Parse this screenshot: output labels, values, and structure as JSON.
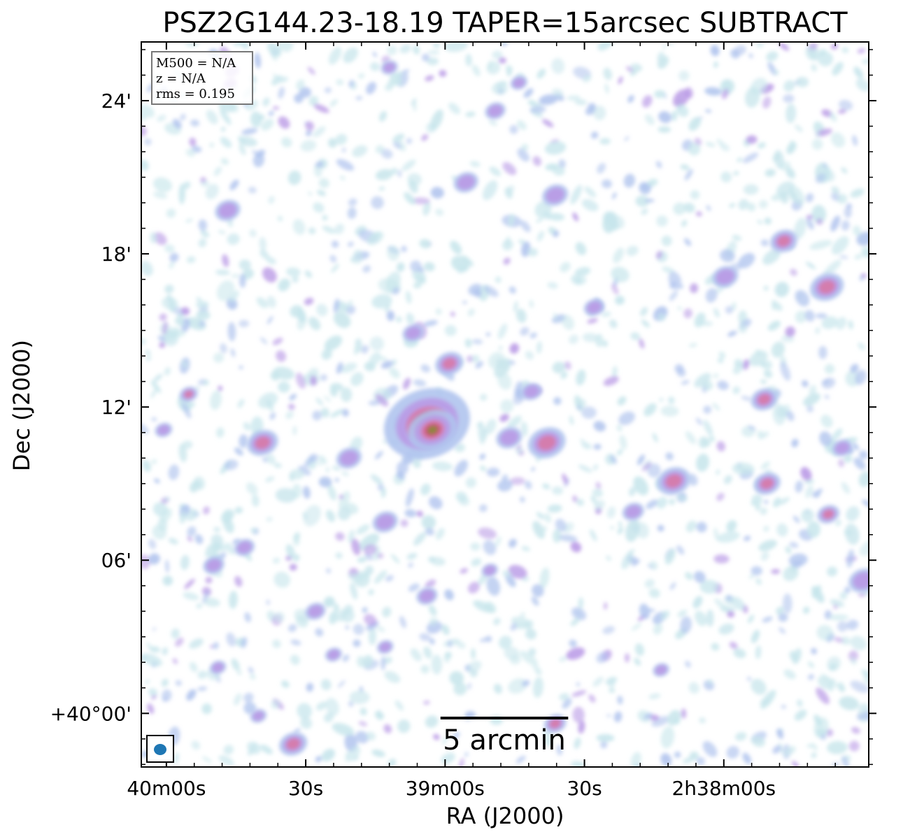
{
  "chart_data": {
    "type": "heatmap",
    "title": "PSZ2G144.23-18.19 TAPER=15arcsec SUBTRACT",
    "xlabel": "RA (J2000)",
    "ylabel": "Dec (J2000)",
    "x_ticks": [
      {
        "label": "40m00s",
        "ra_sec": 160.0
      },
      {
        "label": "30s",
        "ra_sec": 150.0
      },
      {
        "label": "39m00s",
        "ra_sec": 140.0
      },
      {
        "label": "30s",
        "ra_sec": 130.0
      },
      {
        "label": "2h38m00s",
        "ra_sec": 120.0
      }
    ],
    "y_ticks": [
      {
        "label": "24'",
        "dec_arcmin": 24
      },
      {
        "label": "18'",
        "dec_arcmin": 18
      },
      {
        "label": "12'",
        "dec_arcmin": 12
      },
      {
        "label": "06'",
        "dec_arcmin": 6
      },
      {
        "label": "+40°00'",
        "dec_arcmin": 0
      }
    ],
    "x_range_ra_sec": [
      161.8,
      109.6
    ],
    "y_range_dec_arcmin": [
      -2.1,
      26.3
    ],
    "info_box": {
      "position": "top-left",
      "lines": [
        "M500 = N/A",
        "z = N/A",
        "rms = 0.195"
      ]
    },
    "scale_bar": {
      "label": "5 arcmin",
      "length_arcmin": 5
    },
    "beam": {
      "position": "bottom-left",
      "color": "#1f77b4"
    },
    "colormap": [
      "#ffffff",
      "#c8e6ec",
      "#b0c4ee",
      "#b99ae6",
      "#d77aa6",
      "#c8506a",
      "#8a8a3a",
      "#4f7a2e"
    ],
    "sources": [
      {
        "ra_sec": 141.3,
        "dec_arcmin": 11.35,
        "peak": 1.0,
        "size": 1.5
      },
      {
        "ra_sec": 140.9,
        "dec_arcmin": 11.1,
        "peak": 0.9,
        "size": 0.9
      },
      {
        "ra_sec": 139.7,
        "dec_arcmin": 13.7,
        "peak": 0.55,
        "size": 0.6
      },
      {
        "ra_sec": 132.7,
        "dec_arcmin": 10.6,
        "peak": 0.55,
        "size": 0.8
      },
      {
        "ra_sec": 123.6,
        "dec_arcmin": 9.1,
        "peak": 0.6,
        "size": 0.7
      },
      {
        "ra_sec": 112.6,
        "dec_arcmin": 16.7,
        "peak": 0.6,
        "size": 0.7
      },
      {
        "ra_sec": 115.7,
        "dec_arcmin": 18.5,
        "peak": 0.5,
        "size": 0.6
      },
      {
        "ra_sec": 112.5,
        "dec_arcmin": 7.8,
        "peak": 0.45,
        "size": 0.5
      },
      {
        "ra_sec": 116.9,
        "dec_arcmin": 9.0,
        "peak": 0.45,
        "size": 0.6
      },
      {
        "ra_sec": 117.1,
        "dec_arcmin": 12.3,
        "peak": 0.45,
        "size": 0.6
      },
      {
        "ra_sec": 150.9,
        "dec_arcmin": -1.2,
        "peak": 0.55,
        "size": 0.6
      },
      {
        "ra_sec": 153.1,
        "dec_arcmin": 10.6,
        "peak": 0.45,
        "size": 0.7
      },
      {
        "ra_sec": 132.1,
        "dec_arcmin": -0.4,
        "peak": 0.45,
        "size": 0.5
      },
      {
        "ra_sec": 132.1,
        "dec_arcmin": 20.3,
        "peak": 0.4,
        "size": 0.6
      },
      {
        "ra_sec": 119.9,
        "dec_arcmin": 17.1,
        "peak": 0.4,
        "size": 0.6
      },
      {
        "ra_sec": 158.4,
        "dec_arcmin": 12.5,
        "peak": 0.5,
        "size": 0.4
      },
      {
        "ra_sec": 160.2,
        "dec_arcmin": 11.1,
        "peak": 0.4,
        "size": 0.4
      },
      {
        "ra_sec": 126.5,
        "dec_arcmin": 7.9,
        "peak": 0.4,
        "size": 0.5
      },
      {
        "ra_sec": 135.4,
        "dec_arcmin": 10.8,
        "peak": 0.4,
        "size": 0.6
      },
      {
        "ra_sec": 142.3,
        "dec_arcmin": 14.9,
        "peak": 0.35,
        "size": 0.5
      },
      {
        "ra_sec": 144.3,
        "dec_arcmin": 7.5,
        "peak": 0.35,
        "size": 0.6
      },
      {
        "ra_sec": 141.3,
        "dec_arcmin": 4.6,
        "peak": 0.35,
        "size": 0.5
      },
      {
        "ra_sec": 146.9,
        "dec_arcmin": 10.0,
        "peak": 0.35,
        "size": 0.6
      },
      {
        "ra_sec": 154.4,
        "dec_arcmin": 6.5,
        "peak": 0.3,
        "size": 0.5
      },
      {
        "ra_sec": 156.6,
        "dec_arcmin": 5.8,
        "peak": 0.35,
        "size": 0.5
      },
      {
        "ra_sec": 148.0,
        "dec_arcmin": 2.3,
        "peak": 0.35,
        "size": 0.4
      },
      {
        "ra_sec": 155.6,
        "dec_arcmin": 19.7,
        "peak": 0.35,
        "size": 0.6
      },
      {
        "ra_sec": 138.5,
        "dec_arcmin": 20.8,
        "peak": 0.3,
        "size": 0.6
      },
      {
        "ra_sec": 144.0,
        "dec_arcmin": 25.3,
        "peak": 0.35,
        "size": 0.4
      },
      {
        "ra_sec": 134.7,
        "dec_arcmin": 24.7,
        "peak": 0.35,
        "size": 0.4
      },
      {
        "ra_sec": 136.4,
        "dec_arcmin": 23.6,
        "peak": 0.3,
        "size": 0.5
      },
      {
        "ra_sec": 129.3,
        "dec_arcmin": 15.9,
        "peak": 0.3,
        "size": 0.5
      },
      {
        "ra_sec": 111.5,
        "dec_arcmin": 10.4,
        "peak": 0.3,
        "size": 0.5
      },
      {
        "ra_sec": 110.0,
        "dec_arcmin": 5.2,
        "peak": 0.3,
        "size": 0.7
      },
      {
        "ra_sec": 133.8,
        "dec_arcmin": 12.6,
        "peak": 0.3,
        "size": 0.5
      },
      {
        "ra_sec": 136.8,
        "dec_arcmin": 5.6,
        "peak": 0.3,
        "size": 0.4
      },
      {
        "ra_sec": 124.5,
        "dec_arcmin": 1.7,
        "peak": 0.3,
        "size": 0.4
      },
      {
        "ra_sec": 149.3,
        "dec_arcmin": 4.0,
        "peak": 0.3,
        "size": 0.5
      },
      {
        "ra_sec": 156.3,
        "dec_arcmin": 1.8,
        "peak": 0.3,
        "size": 0.4
      },
      {
        "ra_sec": 153.4,
        "dec_arcmin": -0.1,
        "peak": 0.3,
        "size": 0.4
      },
      {
        "ra_sec": 144.3,
        "dec_arcmin": 2.6,
        "peak": 0.3,
        "size": 0.4
      }
    ]
  }
}
